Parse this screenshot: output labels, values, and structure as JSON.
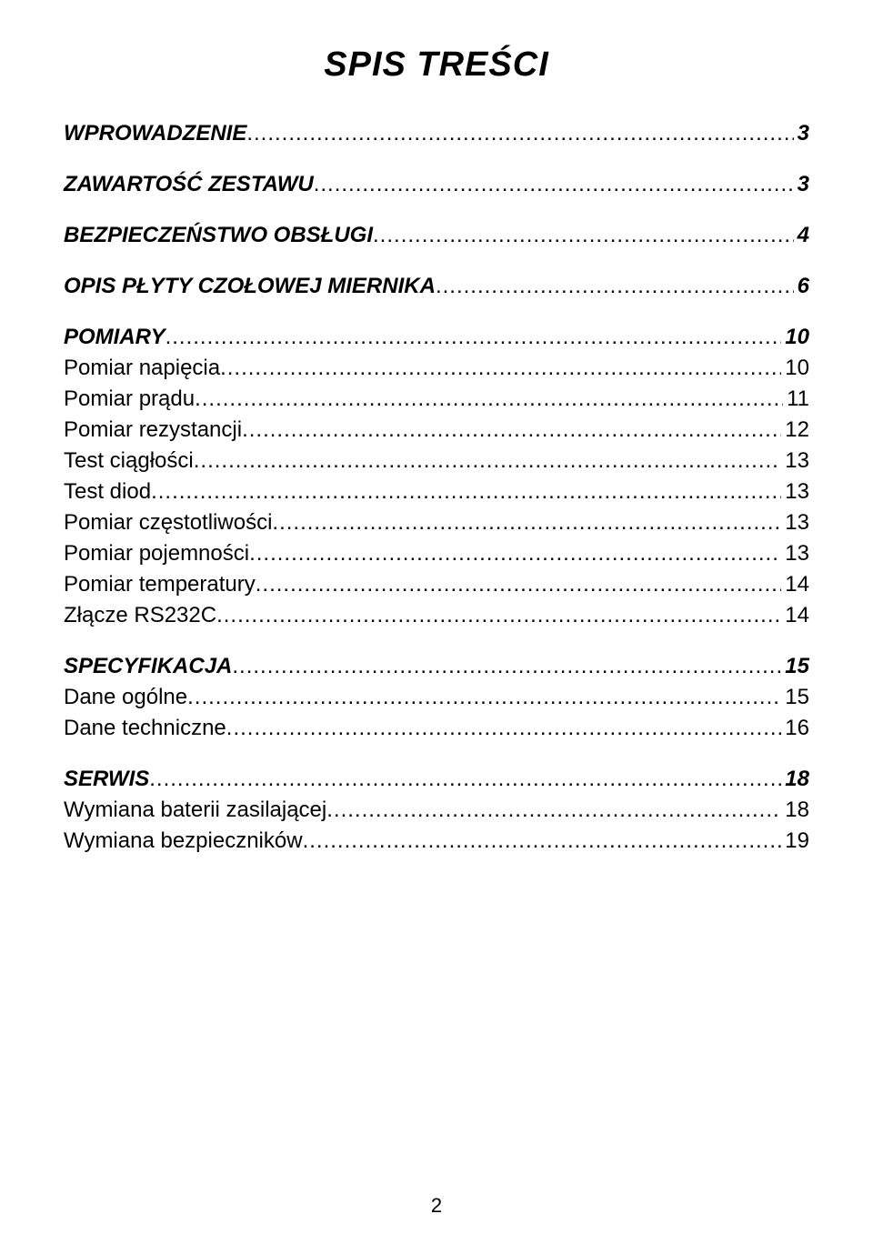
{
  "title": "SPIS TREŚCI",
  "page_number": "2",
  "entries": [
    {
      "label": "WPROWADZENIE",
      "page": "3",
      "level": "section"
    },
    {
      "label": "ZAWARTOŚĆ ZESTAWU",
      "page": "3",
      "level": "section"
    },
    {
      "label": "BEZPIECZEŃSTWO OBSŁUGI",
      "page": "4",
      "level": "section"
    },
    {
      "label": "OPIS PŁYTY CZOŁOWEJ MIERNIKA",
      "page": "6",
      "level": "section"
    },
    {
      "label": "POMIARY",
      "page": "10",
      "level": "section"
    },
    {
      "label": "Pomiar napięcia",
      "page": "10",
      "level": "sub"
    },
    {
      "label": "Pomiar prądu",
      "page": "11",
      "level": "sub"
    },
    {
      "label": "Pomiar rezystancji",
      "page": "12",
      "level": "sub"
    },
    {
      "label": "Test ciągłości",
      "page": "13",
      "level": "sub"
    },
    {
      "label": "Test diod",
      "page": "13",
      "level": "sub"
    },
    {
      "label": "Pomiar częstotliwości",
      "page": "13",
      "level": "sub"
    },
    {
      "label": "Pomiar pojemności",
      "page": "13",
      "level": "sub"
    },
    {
      "label": "Pomiar temperatury",
      "page": "14",
      "level": "sub"
    },
    {
      "label": "Złącze RS232C",
      "page": "14",
      "level": "sub"
    },
    {
      "label": "SPECYFIKACJA",
      "page": "15",
      "level": "section"
    },
    {
      "label": "Dane ogólne",
      "page": "15",
      "level": "sub"
    },
    {
      "label": "Dane techniczne",
      "page": "16",
      "level": "sub"
    },
    {
      "label": "SERWIS",
      "page": "18",
      "level": "section"
    },
    {
      "label": "Wymiana baterii zasilającej",
      "page": "18",
      "level": "sub"
    },
    {
      "label": "Wymiana bezpieczników",
      "page": "19",
      "level": "sub"
    }
  ]
}
